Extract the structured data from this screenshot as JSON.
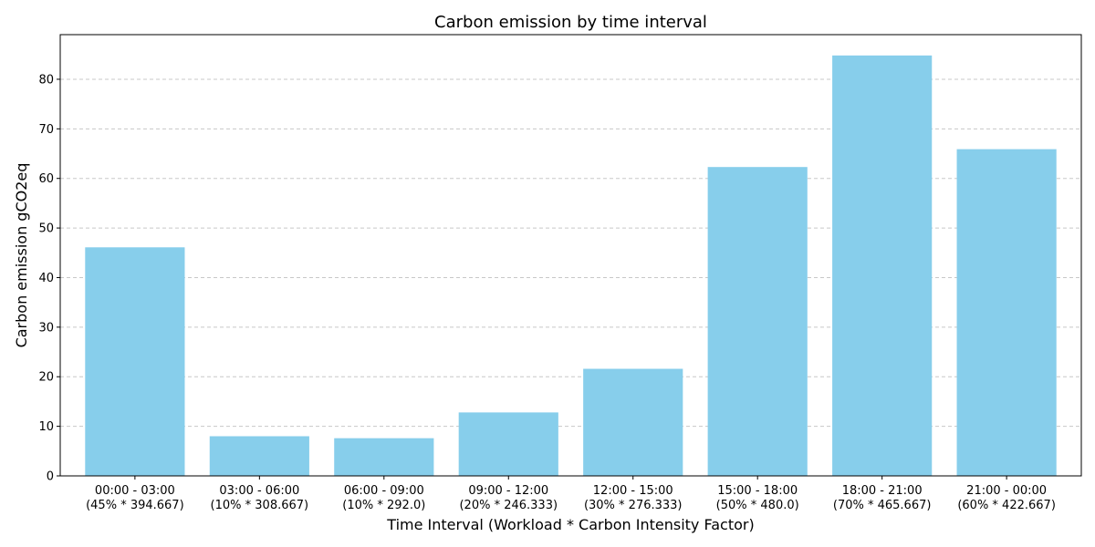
{
  "chart_data": {
    "type": "bar",
    "title": "Carbon emission by time interval",
    "xlabel": "Time Interval (Workload * Carbon Intensity Factor)",
    "ylabel": "Carbon emission gCO2eq",
    "categories": [
      [
        "00:00 - 03:00",
        "(45% * 394.667)"
      ],
      [
        "03:00 - 06:00",
        "(10% * 308.667)"
      ],
      [
        "06:00 - 09:00",
        "(10% * 292.0)"
      ],
      [
        "09:00 - 12:00",
        "(20% * 246.333)"
      ],
      [
        "12:00 - 15:00",
        "(30% * 276.333)"
      ],
      [
        "15:00 - 18:00",
        "(50% * 480.0)"
      ],
      [
        "18:00 - 21:00",
        "(70% * 465.667)"
      ],
      [
        "21:00 - 00:00",
        "(60% * 422.667)"
      ]
    ],
    "values": [
      46.1,
      8.0,
      7.6,
      12.8,
      21.6,
      62.3,
      84.8,
      65.9
    ],
    "ylim": [
      0,
      89
    ],
    "yticks": [
      0,
      10,
      20,
      30,
      40,
      50,
      60,
      70,
      80
    ],
    "grid": "y",
    "bar_color": "#87CEEB"
  }
}
